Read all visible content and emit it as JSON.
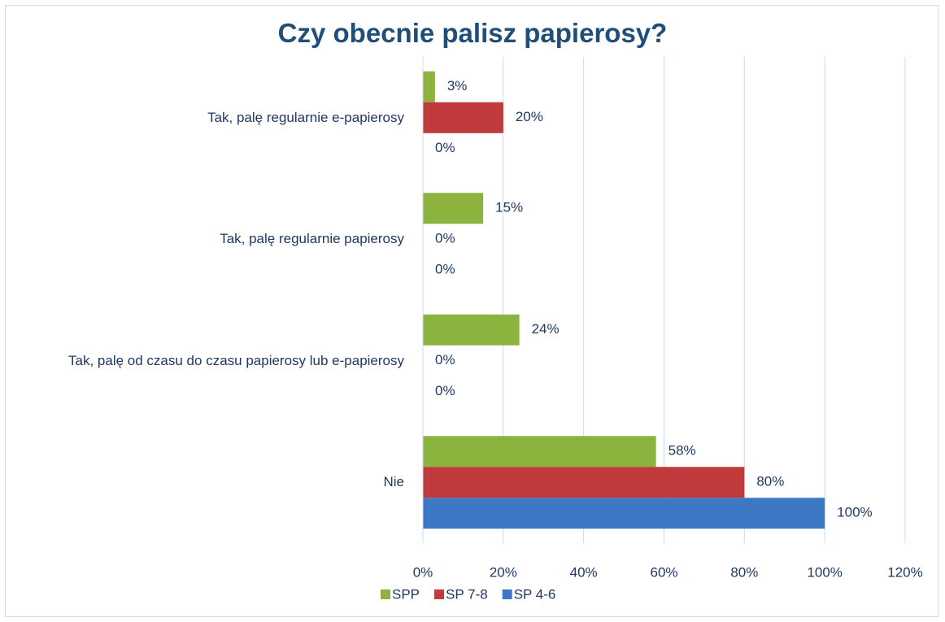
{
  "chart_data": {
    "type": "bar",
    "orientation": "horizontal",
    "title": "Czy obecnie palisz papierosy?",
    "categories": [
      "Tak, palę regularnie e-papierosy",
      "Tak, palę regularnie papierosy",
      "Tak, palę od czasu do czasu papierosy lub e-papierosy",
      "Nie"
    ],
    "series": [
      {
        "name": "SPP",
        "color": "#8cb33e",
        "values": [
          3,
          15,
          24,
          58
        ],
        "value_labels": [
          "3%",
          "15%",
          "24%",
          "58%"
        ]
      },
      {
        "name": "SP 7-8",
        "color": "#c0393b",
        "values": [
          20,
          0,
          0,
          80
        ],
        "value_labels": [
          "20%",
          "0%",
          "0%",
          "80%"
        ]
      },
      {
        "name": "SP 4-6",
        "color": "#3d78c4",
        "values": [
          0,
          0,
          0,
          100
        ],
        "value_labels": [
          "0%",
          "0%",
          "0%",
          "100%"
        ]
      }
    ],
    "xlim": [
      0,
      120
    ],
    "xticks": [
      {
        "value": 0,
        "label": "0%"
      },
      {
        "value": 20,
        "label": "20%"
      },
      {
        "value": 40,
        "label": "40%"
      },
      {
        "value": 60,
        "label": "60%"
      },
      {
        "value": 80,
        "label": "80%"
      },
      {
        "value": 100,
        "label": "100%"
      },
      {
        "value": 120,
        "label": "120%"
      }
    ],
    "grid": true,
    "legend": "bottom"
  }
}
